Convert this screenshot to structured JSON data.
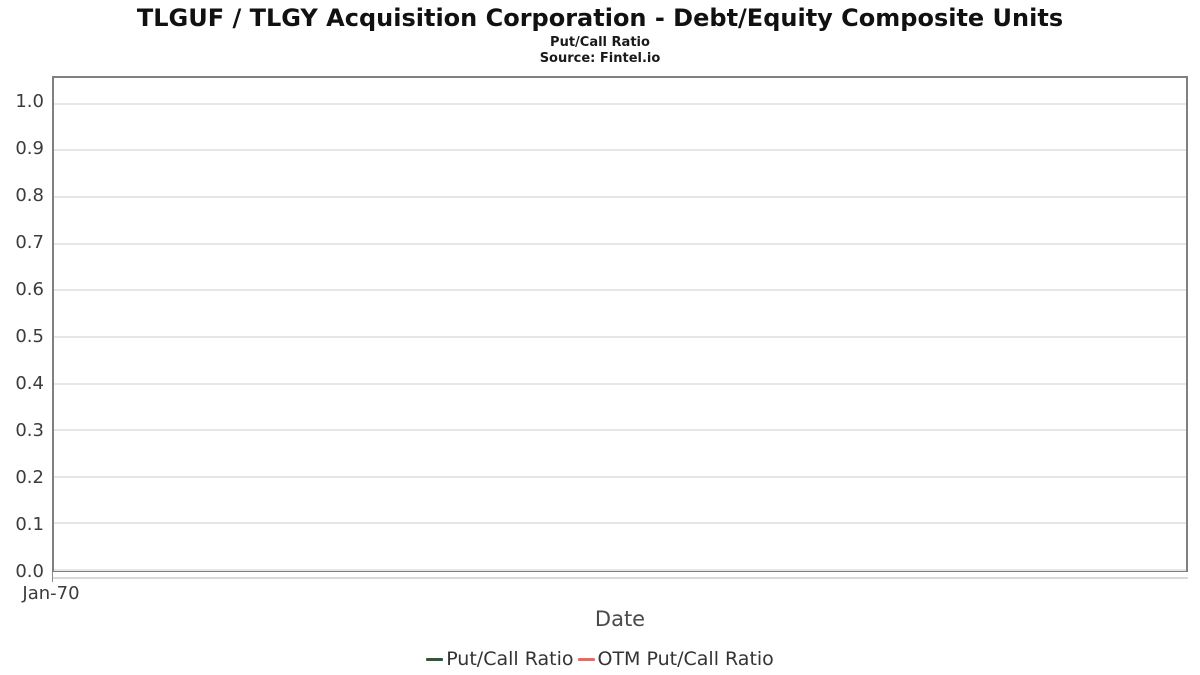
{
  "chart_data": {
    "type": "line",
    "title": "TLGUF / TLGY Acquisition Corporation - Debt/Equity Composite Units",
    "subtitle": "Put/Call Ratio",
    "source": "Source: Fintel.io",
    "xlabel": "Date",
    "ylabel": "",
    "x_ticks": [
      "Jan-70"
    ],
    "y_ticks": [
      0.0,
      0.1,
      0.2,
      0.3,
      0.4,
      0.5,
      0.6,
      0.7,
      0.8,
      0.9,
      1.0
    ],
    "ylim": [
      0,
      1.0553
    ],
    "grid": "horizontal-only",
    "legend_position": "bottom-center",
    "plot_border_color": "#808080",
    "gridline_color": "#e6e6e6",
    "series": [
      {
        "name": "Put/Call Ratio",
        "color": "#2e5939",
        "x": [],
        "values": []
      },
      {
        "name": "OTM Put/Call Ratio",
        "color": "#f4655f",
        "x": [],
        "values": []
      }
    ]
  }
}
